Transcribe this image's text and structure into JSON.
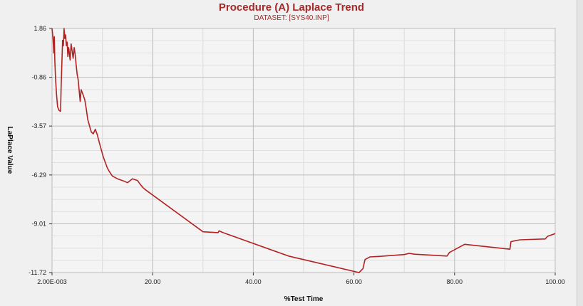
{
  "chart_data": {
    "type": "line",
    "title": "Procedure (A) Laplace Trend",
    "subtitle": "DATASET: [SYS40.INP]",
    "xlabel": "%Test Time",
    "ylabel": "LaPlace Value",
    "xlim": [
      0.002,
      100
    ],
    "ylim": [
      -11.72,
      1.86
    ],
    "x_ticks": [
      0.002,
      20,
      40,
      60,
      80,
      100
    ],
    "x_tick_labels": [
      "2.00E-003",
      "20.00",
      "40.00",
      "60.00",
      "80.00",
      "100.00"
    ],
    "y_ticks": [
      1.86,
      -0.86,
      -3.57,
      -6.29,
      -9.01,
      -11.72
    ],
    "y_tick_labels": [
      "1.86",
      "-0.86",
      "-3.57",
      "-6.29",
      "-9.01",
      "-11.72"
    ],
    "grid": true,
    "line_color": "#b22222",
    "series": [
      {
        "x": [
          0.0,
          0.2,
          0.35,
          0.45,
          0.55,
          0.7,
          0.9,
          1.1,
          1.4,
          1.7,
          1.8,
          1.95,
          2.1,
          2.25,
          2.4,
          2.55,
          2.7,
          2.85,
          3.0,
          3.15,
          3.3,
          3.45,
          3.6,
          3.8,
          4.0,
          4.2,
          4.4,
          4.6,
          4.8,
          5.0,
          5.2,
          5.4,
          5.6,
          5.8,
          6.0,
          6.2,
          6.5,
          6.8,
          7.1,
          7.4,
          7.8,
          8.2,
          8.6,
          9.0,
          9.4,
          9.8,
          10.2,
          10.6,
          11.0,
          11.4,
          12.0,
          13.0,
          14.0,
          15.0,
          16.0,
          17.0,
          17.5,
          17.8,
          18.1,
          18.5,
          30.0,
          33.0,
          33.2,
          34.0,
          47.0,
          61.0,
          61.8,
          62.2,
          62.5,
          63.2,
          65.0,
          70.0,
          71.0,
          72.0,
          78.5,
          79.0,
          80.0,
          81.0,
          82.0,
          91.0,
          91.2,
          92.0,
          93.0,
          95.0,
          98.0,
          98.5,
          99.0,
          100.0
        ],
        "values": [
          1.86,
          1.3,
          0.5,
          1.4,
          0.1,
          -0.9,
          -1.8,
          -2.5,
          -2.7,
          -2.75,
          -1.5,
          -0.1,
          1.2,
          0.9,
          1.86,
          1.3,
          1.5,
          0.9,
          1.1,
          0.3,
          0.8,
          0.5,
          0.1,
          1.0,
          0.6,
          0.2,
          0.8,
          0.4,
          -0.2,
          -0.7,
          -1.0,
          -1.6,
          -2.2,
          -1.55,
          -1.7,
          -1.85,
          -2.1,
          -2.6,
          -3.2,
          -3.5,
          -3.9,
          -4.0,
          -3.75,
          -4.05,
          -4.5,
          -4.9,
          -5.3,
          -5.6,
          -5.9,
          -6.1,
          -6.35,
          -6.5,
          -6.6,
          -6.72,
          -6.5,
          -6.6,
          -6.8,
          -6.9,
          -7.0,
          -7.1,
          -9.45,
          -9.5,
          -9.4,
          -9.5,
          -10.8,
          -11.72,
          -11.5,
          -11.0,
          -10.95,
          -10.85,
          -10.82,
          -10.72,
          -10.65,
          -10.7,
          -10.8,
          -10.6,
          -10.45,
          -10.3,
          -10.15,
          -10.42,
          -10.0,
          -9.95,
          -9.9,
          -9.88,
          -9.85,
          -9.7,
          -9.65,
          -9.55
        ]
      }
    ]
  }
}
